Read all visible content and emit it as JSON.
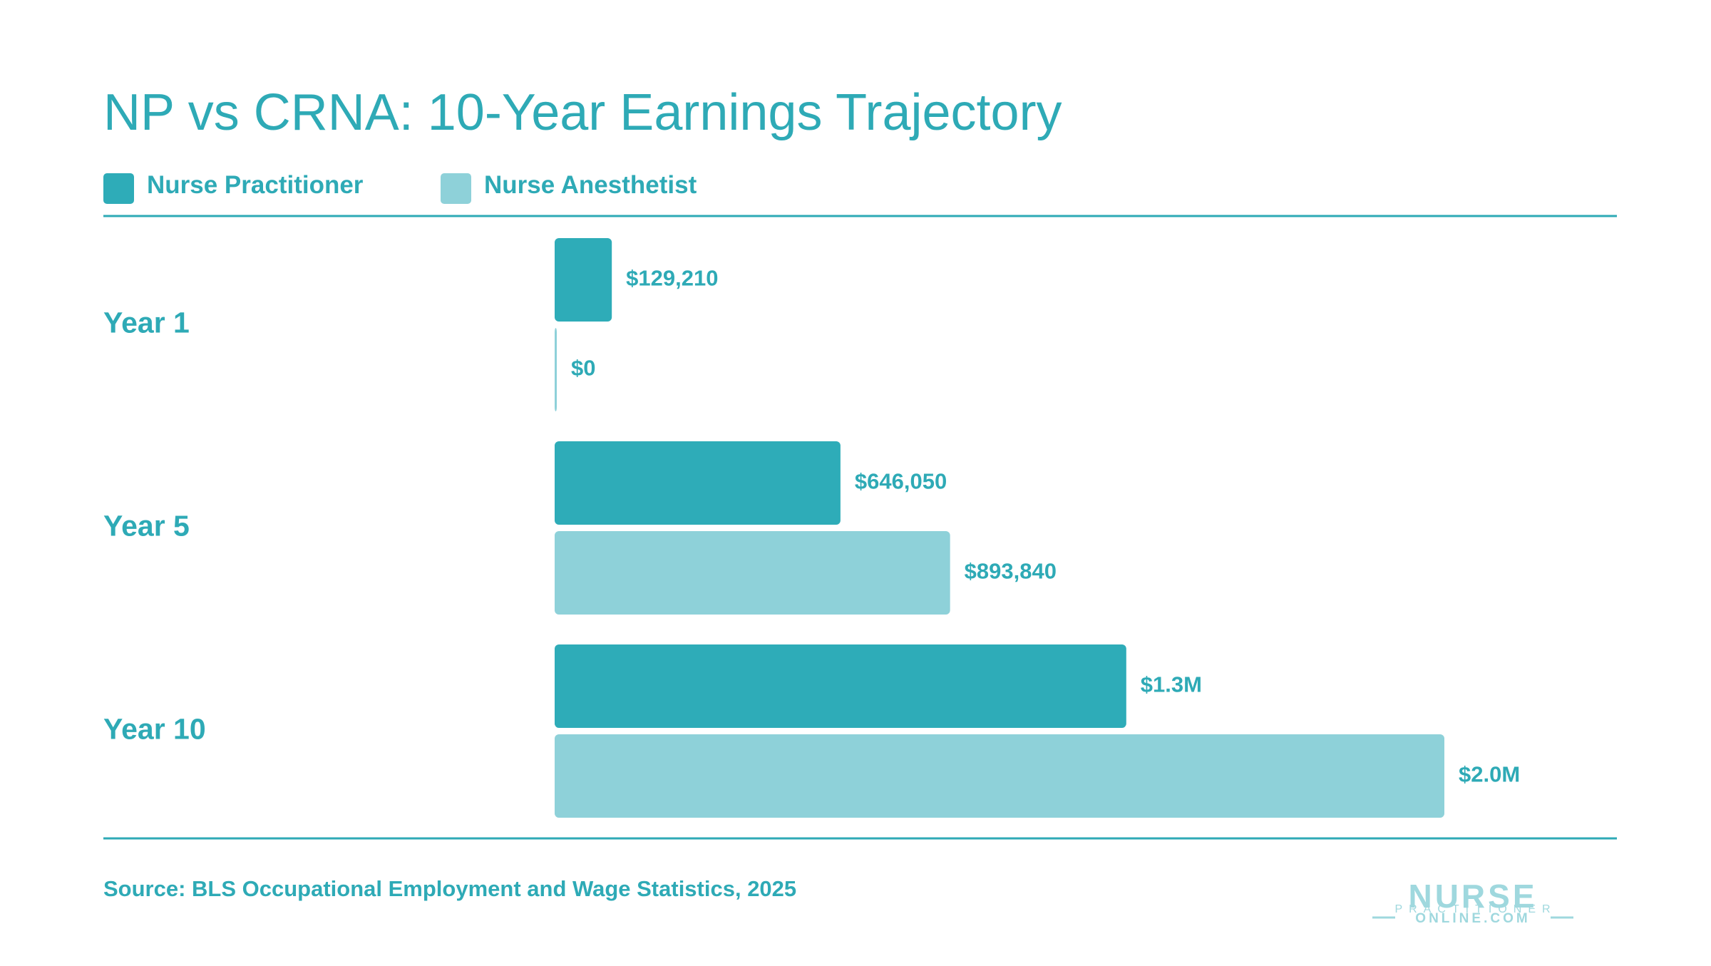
{
  "chart_data": {
    "type": "hbar",
    "title": "NP vs CRNA: 10-Year Earnings Trajectory",
    "categories": [
      "Year 1",
      "Year 5",
      "Year 10"
    ],
    "series": [
      {
        "name": "Nurse Practitioner",
        "color": "#2eacb8",
        "values": [
          129210,
          646050,
          1292100
        ],
        "value_labels": [
          "$129,210",
          "$646,050",
          "$1.3M"
        ]
      },
      {
        "name": "Nurse Anesthetist",
        "color": "#8ed1d9",
        "values": [
          0,
          893840,
          2011140
        ],
        "value_labels": [
          "$0",
          "$893,840",
          "$2.0M"
        ]
      }
    ],
    "source": "Source: BLS Occupational Employment and Wage Statistics, 2025"
  },
  "logo": {
    "line1": "NURSE",
    "line2": "PRACTITIONER",
    "line3": "ONLINE.COM"
  }
}
